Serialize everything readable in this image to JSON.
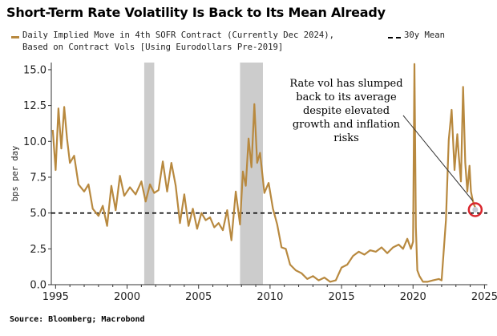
{
  "title": "Short-Term Rate Volatility Is Back to Its Mean Already",
  "source": "Source: Bloomberg; Macrobond",
  "chart_data": {
    "type": "line",
    "title": "Short-Term Rate Volatility Is Back to Its Mean Already",
    "ylabel": "bps per day",
    "xlim": [
      1994.7,
      2025.2
    ],
    "ylim": [
      0,
      15.5
    ],
    "x_ticks": [
      1995,
      2000,
      2005,
      2010,
      2015,
      2020,
      2025
    ],
    "x_tick_labels": [
      "1995",
      "2000",
      "2005",
      "2010",
      "2015",
      "2020",
      "2025"
    ],
    "y_ticks": [
      0,
      2.5,
      5,
      7.5,
      10,
      12.5,
      15
    ],
    "y_tick_labels": [
      "0.0",
      "2.5",
      "5.0",
      "7.5",
      "10.0",
      "12.5",
      "15.0"
    ],
    "grid": false,
    "legend_placement": "top-left",
    "recession_shading": [
      [
        2001.2,
        2001.9
      ],
      [
        2007.9,
        2009.5
      ]
    ],
    "mean_line": {
      "name": "30y Mean",
      "value": 5.0
    },
    "series": [
      {
        "name": "Daily Implied Move in 4th SOFR Contract (Currently Dec 2024), Based on Contract Vols [Using Eurodollars Pre-2019]",
        "legend_lines": [
          "Daily Implied Move in 4th SOFR Contract (Currently Dec 2024),",
          "Based on Contract Vols [Using Eurodollars Pre-2019]"
        ],
        "color": "#b8893f",
        "x": [
          1994.8,
          1995.0,
          1995.2,
          1995.4,
          1995.6,
          1995.8,
          1996.0,
          1996.3,
          1996.6,
          1997.0,
          1997.3,
          1997.6,
          1998.0,
          1998.3,
          1998.6,
          1998.9,
          1999.2,
          1999.5,
          1999.8,
          2000.2,
          2000.6,
          2001.0,
          2001.3,
          2001.6,
          2001.9,
          2002.2,
          2002.5,
          2002.8,
          2003.1,
          2003.4,
          2003.7,
          2004.0,
          2004.3,
          2004.6,
          2004.9,
          2005.2,
          2005.5,
          2005.8,
          2006.1,
          2006.4,
          2006.7,
          2007.0,
          2007.3,
          2007.6,
          2007.9,
          2008.1,
          2008.3,
          2008.5,
          2008.7,
          2008.9,
          2009.1,
          2009.3,
          2009.6,
          2009.9,
          2010.2,
          2010.5,
          2010.8,
          2011.1,
          2011.4,
          2011.8,
          2012.2,
          2012.6,
          2013.0,
          2013.4,
          2013.8,
          2014.2,
          2014.6,
          2015.0,
          2015.4,
          2015.8,
          2016.2,
          2016.6,
          2017.0,
          2017.4,
          2017.8,
          2018.2,
          2018.6,
          2019.0,
          2019.3,
          2019.6,
          2019.85,
          2020.0,
          2020.1,
          2020.2,
          2020.3,
          2020.45,
          2020.7,
          2021.0,
          2021.4,
          2021.8,
          2022.0,
          2022.3,
          2022.5,
          2022.7,
          2022.9,
          2023.1,
          2023.2,
          2023.35,
          2023.5,
          2023.65,
          2023.8,
          2023.95,
          2024.05,
          2024.15,
          2024.25,
          2024.35
        ],
        "values": [
          10.8,
          8.0,
          12.3,
          9.5,
          12.4,
          10.2,
          8.5,
          9.0,
          7.0,
          6.5,
          7.0,
          5.3,
          4.8,
          5.5,
          4.1,
          6.9,
          5.2,
          7.6,
          6.2,
          6.8,
          6.3,
          7.2,
          5.8,
          7.0,
          6.4,
          6.6,
          8.6,
          6.5,
          8.5,
          6.9,
          4.3,
          6.3,
          4.1,
          5.3,
          3.9,
          5.0,
          4.5,
          4.7,
          4.0,
          4.3,
          3.8,
          5.2,
          3.1,
          6.5,
          4.2,
          7.9,
          6.9,
          10.2,
          8.2,
          12.6,
          8.5,
          9.2,
          6.4,
          7.1,
          5.3,
          4.2,
          2.6,
          2.5,
          1.4,
          1.0,
          0.8,
          0.4,
          0.6,
          0.3,
          0.5,
          0.2,
          0.3,
          1.2,
          1.4,
          2.0,
          2.3,
          2.1,
          2.4,
          2.3,
          2.6,
          2.2,
          2.6,
          2.8,
          2.5,
          3.2,
          2.5,
          3.0,
          15.4,
          4.0,
          1.0,
          0.6,
          0.2,
          0.2,
          0.3,
          0.4,
          0.3,
          4.5,
          10.1,
          12.2,
          8.0,
          10.5,
          9.0,
          7.2,
          13.8,
          8.5,
          6.5,
          8.3,
          6.5,
          6.0,
          5.6,
          5.4
        ]
      }
    ],
    "annotations": [
      {
        "lines": [
          "Rate vol has slumped",
          "back to its average",
          "despite elevated",
          "growth and inflation",
          "risks"
        ],
        "target": {
          "x": 2024.35,
          "y": 5.4
        }
      }
    ]
  }
}
